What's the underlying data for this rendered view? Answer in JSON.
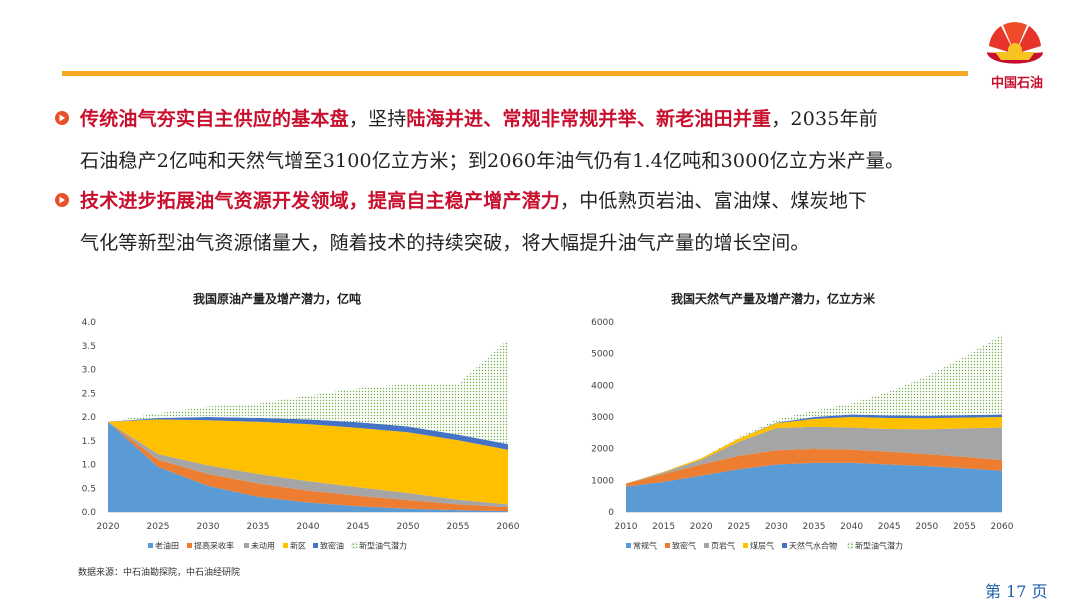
{
  "header": {
    "logo_text": "中国石油",
    "accent": "#f5a623",
    "brand": "#c8102e"
  },
  "bullets": [
    {
      "line1": [
        {
          "t": "传统油气夯实自主供应的基本盘",
          "h": true
        },
        {
          "t": "，坚持",
          "h": false
        },
        {
          "t": "陆海并进、常规非常规并举、新老油田并重",
          "h": true
        },
        {
          "t": "，2035年前",
          "h": false
        }
      ],
      "line2": "石油稳产2亿吨和天然气增至3100亿立方米；到2060年油气仍有1.4亿吨和3000亿立方米产量。"
    },
    {
      "line1": [
        {
          "t": "技术进步拓展油气资源开发领域，提高自主稳产增产潜力",
          "h": true
        },
        {
          "t": "，中低熟页岩油、富油煤、煤炭地下",
          "h": false
        }
      ],
      "line2": "气化等新型油气资源储量大，随着技术的持续突破，将大幅提升油气产量的增长空间。"
    }
  ],
  "chart_data": [
    {
      "type": "area",
      "stacked": true,
      "title": "我国原油产量及增产潜力，亿吨",
      "x": [
        2020,
        2025,
        2030,
        2035,
        2040,
        2045,
        2050,
        2055,
        2060
      ],
      "ylim": [
        0,
        4.0
      ],
      "yticks": [
        "0.0",
        "0.5",
        "1.0",
        "1.5",
        "2.0",
        "2.5",
        "3.0",
        "3.5",
        "4.0"
      ],
      "legend_position": "bottom",
      "series": [
        {
          "name": "老油田",
          "color": "#5b9bd5",
          "values": [
            1.9,
            0.95,
            0.55,
            0.32,
            0.2,
            0.12,
            0.07,
            0.04,
            0.02
          ]
        },
        {
          "name": "提高采收率",
          "color": "#ed7d31",
          "values": [
            0.0,
            0.15,
            0.25,
            0.28,
            0.25,
            0.22,
            0.18,
            0.12,
            0.08
          ]
        },
        {
          "name": "未动用",
          "color": "#a5a5a5",
          "values": [
            0.0,
            0.12,
            0.18,
            0.2,
            0.2,
            0.18,
            0.15,
            0.1,
            0.06
          ]
        },
        {
          "name": "新区",
          "color": "#ffc000",
          "values": [
            0.0,
            0.73,
            0.95,
            1.1,
            1.2,
            1.25,
            1.28,
            1.25,
            1.15
          ]
        },
        {
          "name": "致密油",
          "color": "#4472c4",
          "values": [
            0.0,
            0.03,
            0.07,
            0.08,
            0.1,
            0.12,
            0.12,
            0.12,
            0.12
          ]
        },
        {
          "name": "新型油气潜力",
          "color": "#70ad47",
          "pattern": true,
          "values": [
            0.0,
            0.1,
            0.22,
            0.3,
            0.5,
            0.71,
            0.9,
            1.07,
            2.2
          ]
        }
      ]
    },
    {
      "type": "area",
      "stacked": true,
      "title": "我国天然气产量及增产潜力，亿立方米",
      "x": [
        2010,
        2015,
        2020,
        2025,
        2030,
        2035,
        2040,
        2045,
        2050,
        2055,
        2060
      ],
      "ylim": [
        0,
        6000
      ],
      "yticks": [
        "0",
        "1000",
        "2000",
        "3000",
        "4000",
        "5000",
        "6000"
      ],
      "legend_position": "bottom",
      "series": [
        {
          "name": "常规气",
          "color": "#5b9bd5",
          "values": [
            800,
            950,
            1150,
            1350,
            1500,
            1550,
            1550,
            1500,
            1450,
            1380,
            1300
          ]
        },
        {
          "name": "致密气",
          "color": "#ed7d31",
          "values": [
            100,
            250,
            350,
            420,
            450,
            440,
            420,
            400,
            380,
            360,
            340
          ]
        },
        {
          "name": "页岩气",
          "color": "#a5a5a5",
          "values": [
            0,
            50,
            150,
            450,
            700,
            700,
            700,
            720,
            780,
            900,
            1030
          ]
        },
        {
          "name": "煤层气",
          "color": "#ffc000",
          "values": [
            0,
            20,
            50,
            100,
            150,
            250,
            330,
            350,
            350,
            340,
            330
          ]
        },
        {
          "name": "天然气水合物",
          "color": "#4472c4",
          "values": [
            0,
            0,
            0,
            0,
            20,
            60,
            80,
            80,
            80,
            80,
            80
          ]
        },
        {
          "name": "新型油气潜力",
          "color": "#70ad47",
          "pattern": true,
          "values": [
            0,
            0,
            0,
            50,
            100,
            200,
            350,
            750,
            1250,
            1840,
            2520
          ]
        }
      ]
    }
  ],
  "footer": {
    "source": "数据来源：中石油勘探院，中石油经研院",
    "page": "第 17 页"
  }
}
